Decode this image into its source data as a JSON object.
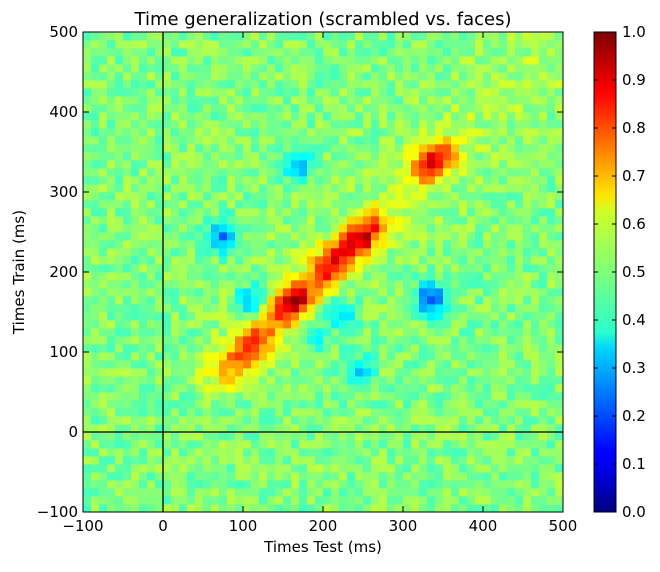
{
  "chart_data": {
    "type": "heatmap",
    "title": "Time generalization (scrambled vs. faces)",
    "xlabel": "Times Test (ms)",
    "ylabel": "Times Train (ms)",
    "xlim": [
      -100,
      500
    ],
    "ylim": [
      -100,
      500
    ],
    "x_ticks": [
      "−100",
      "0",
      "100",
      "200",
      "300",
      "400",
      "500"
    ],
    "y_ticks": [
      "−100",
      "0",
      "100",
      "200",
      "300",
      "400",
      "500"
    ],
    "colorbar": {
      "range": [
        0.0,
        1.0
      ],
      "colormap": "jet",
      "ticks": [
        "0.0",
        "0.1",
        "0.2",
        "0.3",
        "0.4",
        "0.5",
        "0.6",
        "0.7",
        "0.8",
        "0.9",
        "1.0"
      ]
    },
    "reference_lines": {
      "vertical_x": 0,
      "horizontal_y": 0
    },
    "grid": false,
    "baseline_value": 0.5,
    "features": [
      {
        "label": "diagonal",
        "x": 80,
        "y": 80,
        "value": 0.68
      },
      {
        "label": "diagonal",
        "x": 100,
        "y": 100,
        "value": 0.72
      },
      {
        "label": "diagonal",
        "x": 120,
        "y": 120,
        "value": 0.78
      },
      {
        "label": "diagonal",
        "x": 150,
        "y": 150,
        "value": 0.8
      },
      {
        "label": "diagonal",
        "x": 170,
        "y": 170,
        "value": 0.88
      },
      {
        "label": "diagonal",
        "x": 200,
        "y": 200,
        "value": 0.78
      },
      {
        "label": "diagonal",
        "x": 220,
        "y": 220,
        "value": 0.8
      },
      {
        "label": "diagonal",
        "x": 245,
        "y": 240,
        "value": 0.86
      },
      {
        "label": "diagonal",
        "x": 265,
        "y": 260,
        "value": 0.74
      },
      {
        "label": "diagonal",
        "x": 330,
        "y": 330,
        "value": 0.84
      },
      {
        "label": "diagonal",
        "x": 350,
        "y": 350,
        "value": 0.74
      },
      {
        "label": "off-diagonal",
        "x": 75,
        "y": 245,
        "value": 0.25
      },
      {
        "label": "off-diagonal",
        "x": 170,
        "y": 335,
        "value": 0.3
      },
      {
        "label": "off-diagonal",
        "x": 335,
        "y": 168,
        "value": 0.2
      },
      {
        "label": "off-diagonal",
        "x": 225,
        "y": 148,
        "value": 0.34
      },
      {
        "label": "off-diagonal",
        "x": 242,
        "y": 78,
        "value": 0.34
      },
      {
        "label": "off-diagonal",
        "x": 110,
        "y": 165,
        "value": 0.3
      },
      {
        "label": "off-diagonal",
        "x": 190,
        "y": 120,
        "value": 0.36
      }
    ]
  }
}
